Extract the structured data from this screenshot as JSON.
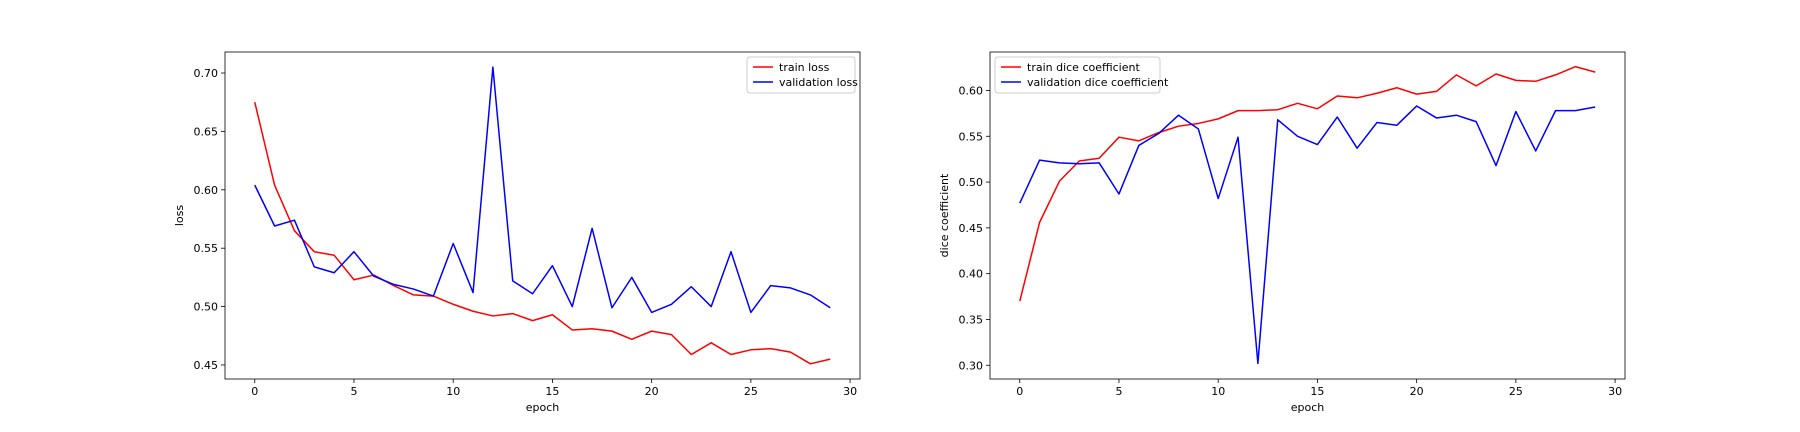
{
  "chart_data": [
    {
      "type": "line",
      "title": "",
      "xlabel": "epoch",
      "ylabel": "loss",
      "xlim": [
        -1.5,
        30.5
      ],
      "ylim": [
        0.438,
        0.718
      ],
      "xticks": [
        0,
        5,
        10,
        15,
        20,
        25,
        30
      ],
      "yticks": [
        0.45,
        0.5,
        0.55,
        0.6,
        0.65,
        0.7
      ],
      "ytick_labels": [
        "0.45",
        "0.50",
        "0.55",
        "0.60",
        "0.65",
        "0.70"
      ],
      "legend_position": "top-right",
      "grid": false,
      "x": [
        0,
        1,
        2,
        3,
        4,
        5,
        6,
        7,
        8,
        9,
        10,
        11,
        12,
        13,
        14,
        15,
        16,
        17,
        18,
        19,
        20,
        21,
        22,
        23,
        24,
        25,
        26,
        27,
        28,
        29
      ],
      "series": [
        {
          "name": "train loss",
          "color": "#ff0000",
          "values": [
            0.675,
            0.604,
            0.565,
            0.547,
            0.544,
            0.523,
            0.527,
            0.518,
            0.51,
            0.509,
            0.502,
            0.496,
            0.492,
            0.494,
            0.488,
            0.493,
            0.48,
            0.481,
            0.479,
            0.472,
            0.479,
            0.476,
            0.459,
            0.469,
            0.459,
            0.463,
            0.464,
            0.461,
            0.451,
            0.455
          ]
        },
        {
          "name": "validation loss",
          "color": "#0000ff",
          "values": [
            0.604,
            0.569,
            0.574,
            0.534,
            0.529,
            0.547,
            0.526,
            0.519,
            0.515,
            0.509,
            0.554,
            0.512,
            0.705,
            0.522,
            0.511,
            0.535,
            0.5,
            0.567,
            0.499,
            0.525,
            0.495,
            0.502,
            0.517,
            0.5,
            0.547,
            0.495,
            0.518,
            0.516,
            0.51,
            0.499
          ]
        }
      ]
    },
    {
      "type": "line",
      "title": "",
      "xlabel": "epoch",
      "ylabel": "dice coefficient",
      "xlim": [
        -1.5,
        30.5
      ],
      "ylim": [
        0.285,
        0.642
      ],
      "xticks": [
        0,
        5,
        10,
        15,
        20,
        25,
        30
      ],
      "yticks": [
        0.3,
        0.35,
        0.4,
        0.45,
        0.5,
        0.55,
        0.6
      ],
      "ytick_labels": [
        "0.30",
        "0.35",
        "0.40",
        "0.45",
        "0.50",
        "0.55",
        "0.60"
      ],
      "legend_position": "top-left",
      "grid": false,
      "x": [
        0,
        1,
        2,
        3,
        4,
        5,
        6,
        7,
        8,
        9,
        10,
        11,
        12,
        13,
        14,
        15,
        16,
        17,
        18,
        19,
        20,
        21,
        22,
        23,
        24,
        25,
        26,
        27,
        28,
        29
      ],
      "series": [
        {
          "name": "train dice coefficient",
          "color": "#ff0000",
          "values": [
            0.37,
            0.456,
            0.501,
            0.523,
            0.526,
            0.549,
            0.545,
            0.554,
            0.561,
            0.564,
            0.569,
            0.578,
            0.578,
            0.579,
            0.586,
            0.58,
            0.594,
            0.592,
            0.597,
            0.603,
            0.596,
            0.599,
            0.617,
            0.605,
            0.618,
            0.611,
            0.61,
            0.617,
            0.626,
            0.62
          ]
        },
        {
          "name": "validation dice coefficient",
          "color": "#0000ff",
          "values": [
            0.477,
            0.524,
            0.521,
            0.52,
            0.521,
            0.487,
            0.54,
            0.553,
            0.573,
            0.558,
            0.482,
            0.549,
            0.302,
            0.568,
            0.55,
            0.541,
            0.571,
            0.537,
            0.565,
            0.562,
            0.583,
            0.57,
            0.573,
            0.566,
            0.518,
            0.577,
            0.534,
            0.578,
            0.578,
            0.582
          ]
        }
      ]
    }
  ]
}
